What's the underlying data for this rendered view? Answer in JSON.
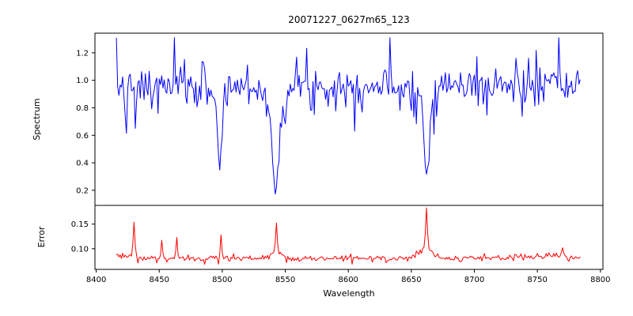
{
  "chart_data": {
    "type": "line",
    "title": "20071227_0627m65_123",
    "xlabel": "Wavelength",
    "grid": false,
    "legend": false,
    "xlim": [
      8399,
      8802
    ],
    "x_data_range": [
      8416,
      8784
    ],
    "x_step": 1.0,
    "x_ticks": [
      {
        "value": 8400,
        "label": "8400"
      },
      {
        "value": 8450,
        "label": "8450"
      },
      {
        "value": 8500,
        "label": "8500"
      },
      {
        "value": 8550,
        "label": "8550"
      },
      {
        "value": 8600,
        "label": "8600"
      },
      {
        "value": 8650,
        "label": "8650"
      },
      {
        "value": 8700,
        "label": "8700"
      },
      {
        "value": 8750,
        "label": "8750"
      },
      {
        "value": 8800,
        "label": "8800"
      }
    ],
    "panels": [
      {
        "name": "spectrum",
        "ylabel": "Spectrum",
        "color": "#0000ff",
        "ylim": [
          0.09,
          1.343
        ],
        "y_ticks": [
          {
            "value": 0.2,
            "label": "0.2"
          },
          {
            "value": 0.4,
            "label": "0.4"
          },
          {
            "value": 0.6,
            "label": "0.6"
          },
          {
            "value": 0.8,
            "label": "0.8"
          },
          {
            "value": 1.0,
            "label": "1.0"
          },
          {
            "value": 1.2,
            "label": "1.2"
          }
        ],
        "continuum": 0.96,
        "noise_sigma": 0.066,
        "noise_tail": 0.12,
        "noise_seed": 7,
        "absorption_lines": [
          {
            "center": 8424.0,
            "core_depth": 0.26,
            "core_sigma": 0.9
          },
          {
            "center": 8431.0,
            "core_depth": 0.28,
            "core_sigma": 1.0
          },
          {
            "center": 8445.0,
            "core_depth": 0.18,
            "core_sigma": 0.8
          },
          {
            "center": 8498.0,
            "core_depth": 0.52,
            "core_sigma": 1.6,
            "wing_depth": 0.1,
            "wing_sigma": 4.0
          },
          {
            "center": 8542.1,
            "core_depth": 0.62,
            "core_sigma": 2.2,
            "wing_depth": 0.2,
            "wing_sigma": 6.0
          },
          {
            "center": 8662.1,
            "core_depth": 0.56,
            "core_sigma": 1.9,
            "wing_depth": 0.12,
            "wing_sigma": 5.0
          }
        ]
      },
      {
        "name": "error",
        "ylabel": "Error",
        "color": "#ff0000",
        "ylim": [
          0.058,
          0.188
        ],
        "y_ticks": [
          {
            "value": 0.1,
            "label": "0.10"
          },
          {
            "value": 0.15,
            "label": "0.15"
          }
        ],
        "baseline": 0.0805,
        "noise_sigma": 0.0028,
        "noise_tail": 0.1,
        "noise_seed": 3,
        "features": [
          {
            "center": 8419,
            "height": 0.005,
            "sigma": 12
          },
          {
            "center": 8430,
            "height": 0.071,
            "sigma": 0.7
          },
          {
            "center": 8452,
            "height": 0.039,
            "sigma": 0.6
          },
          {
            "center": 8464,
            "height": 0.046,
            "sigma": 0.6
          },
          {
            "center": 8499,
            "height": 0.047,
            "sigma": 0.6
          },
          {
            "center": 8543,
            "height": 0.013,
            "sigma": 4.0
          },
          {
            "center": 8543,
            "height": 0.055,
            "sigma": 0.7
          },
          {
            "center": 8661,
            "height": 0.02,
            "sigma": 5.0
          },
          {
            "center": 8662,
            "height": 0.083,
            "sigma": 0.7
          },
          {
            "center": 8755,
            "height": 0.004,
            "sigma": 18
          },
          {
            "center": 8758,
            "height": 0.012,
            "sigma": 0.8
          },
          {
            "center": 8770,
            "height": 0.02,
            "sigma": 0.8
          }
        ]
      }
    ]
  }
}
